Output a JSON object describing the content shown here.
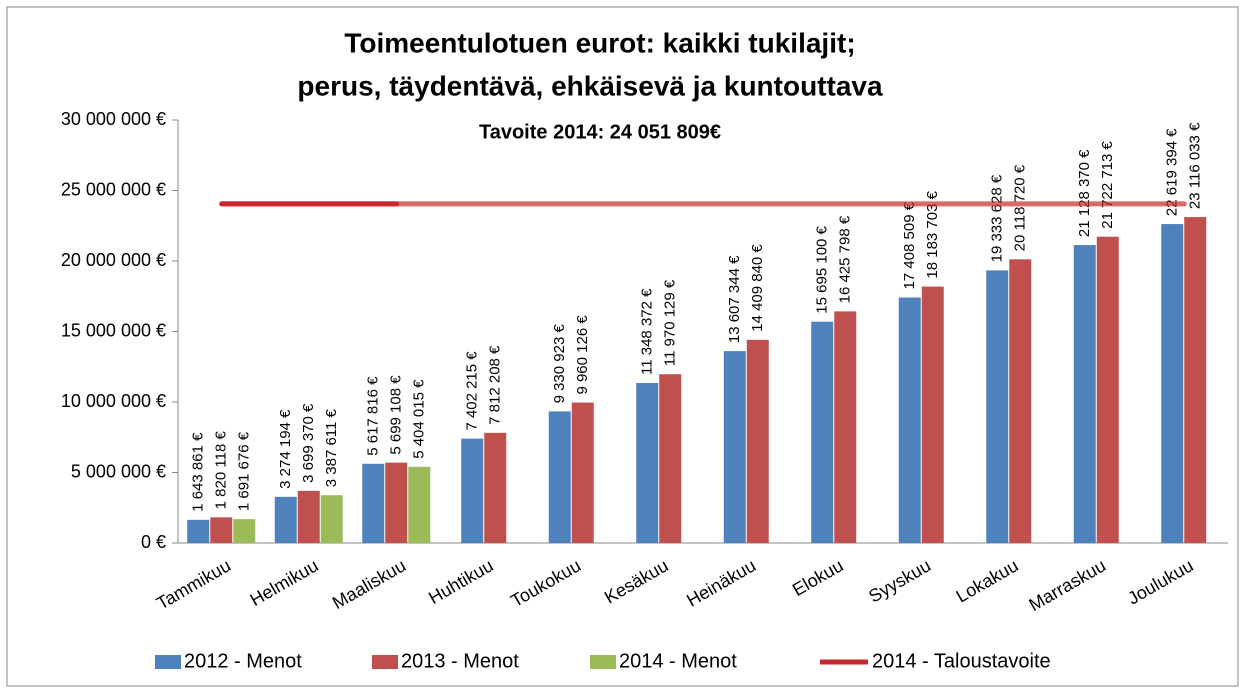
{
  "chart_data": {
    "type": "bar",
    "title": [
      "Toimeentulotuen eurot: kaikki tukilajit;",
      "perus, täydentävä, ehkäisevä ja kuntouttava"
    ],
    "subtitle": "Tavoite 2014: 24 051 809€",
    "categories": [
      "Tammikuu",
      "Helmikuu",
      "Maaliskuu",
      "Huhtikuu",
      "Toukokuu",
      "Kesäkuu",
      "Heinäkuu",
      "Elokuu",
      "Syyskuu",
      "Lokakuu",
      "Marraskuu",
      "Joulukuu"
    ],
    "series": [
      {
        "name": "2012 - Menot",
        "color": "#4f81bd",
        "values": [
          1643861,
          3274194,
          5617816,
          7402215,
          9330923,
          11348372,
          13607344,
          15695100,
          17408509,
          19333628,
          21128370,
          22619394
        ],
        "value_labels": [
          "1 643 861 €",
          "3 274 194 €",
          "5 617 816 €",
          "7 402 215 €",
          "9 330 923 €",
          "11 348 372 €",
          "13 607 344 €",
          "15 695 100 €",
          "17 408 509 €",
          "19 333 628 €",
          "21 128 370 €",
          "22 619 394 €"
        ]
      },
      {
        "name": "2013 - Menot",
        "color": "#c0504d",
        "values": [
          1820118,
          3699370,
          5699108,
          7812208,
          9960126,
          11970129,
          14409840,
          16425798,
          18183703,
          20118720,
          21722713,
          23116033
        ],
        "value_labels": [
          "1 820 118 €",
          "3 699 370 €",
          "5 699 108 €",
          "7 812 208 €",
          "9 960 126 €",
          "11 970 129 €",
          "14 409 840 €",
          "16 425 798 €",
          "18 183 703 €",
          "20 118 720 €",
          "21 722 713 €",
          "23 116 033 €"
        ]
      },
      {
        "name": "2014 - Menot",
        "color": "#9bbb59",
        "values": [
          1691676,
          3387611,
          5404015,
          null,
          null,
          null,
          null,
          null,
          null,
          null,
          null,
          null
        ],
        "value_labels": [
          "1 691 676 €",
          "3 387 611 €",
          "5 404 015 €",
          null,
          null,
          null,
          null,
          null,
          null,
          null,
          null,
          null
        ]
      },
      {
        "name": "2014 - Taloustavoite",
        "color": "#c8282b",
        "kind": "line",
        "values": [
          24051809,
          24051809,
          24051809,
          24051809,
          24051809,
          24051809,
          24051809,
          24051809,
          24051809,
          24051809,
          24051809,
          24051809
        ]
      }
    ],
    "ylim": [
      0,
      30000000
    ],
    "yticks": [
      {
        "value": 0,
        "label": "0 €"
      },
      {
        "value": 5000000,
        "label": "5 000 000 €"
      },
      {
        "value": 10000000,
        "label": "10 000 000 €"
      },
      {
        "value": 15000000,
        "label": "15 000 000 €"
      },
      {
        "value": 20000000,
        "label": "20 000 000 €"
      },
      {
        "value": 25000000,
        "label": "25 000 000 €"
      },
      {
        "value": 30000000,
        "label": "30 000 000 €"
      }
    ],
    "legend": "bottom"
  }
}
